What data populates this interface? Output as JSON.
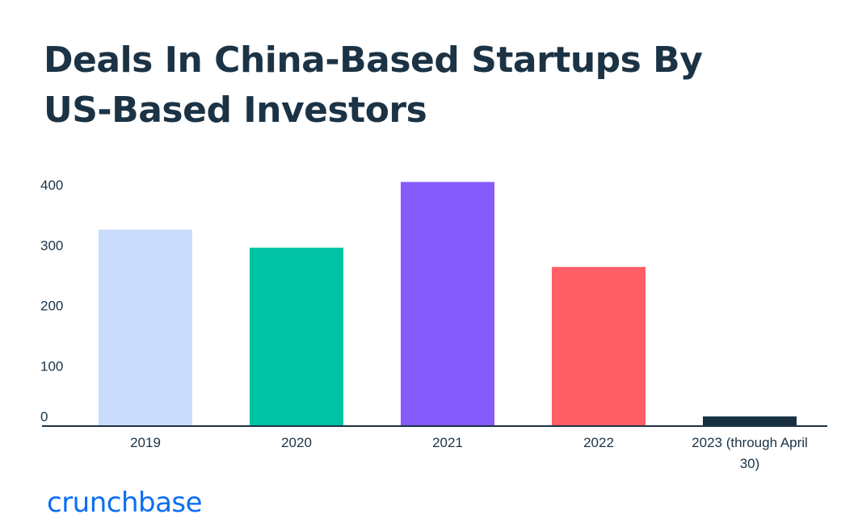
{
  "chart_data": {
    "type": "bar",
    "title": "Deals In China-Based Startups By US-Based Investors",
    "categories": [
      "2019",
      "2020",
      "2021",
      "2022",
      "2023 (through April 30)"
    ],
    "values": [
      326,
      296,
      405,
      264,
      16
    ],
    "colors": [
      "#c9dcfb",
      "#00c3a5",
      "#855bfb",
      "#fe5f67",
      "#17303f"
    ],
    "axis_color": "#1b3345",
    "yticks": [
      0,
      100,
      200,
      300,
      400
    ],
    "ylim": [
      0,
      400
    ],
    "xlabel": "",
    "ylabel": "",
    "grid": false
  },
  "brand": {
    "name": "crunchbase",
    "color": "#0b6ef3"
  }
}
